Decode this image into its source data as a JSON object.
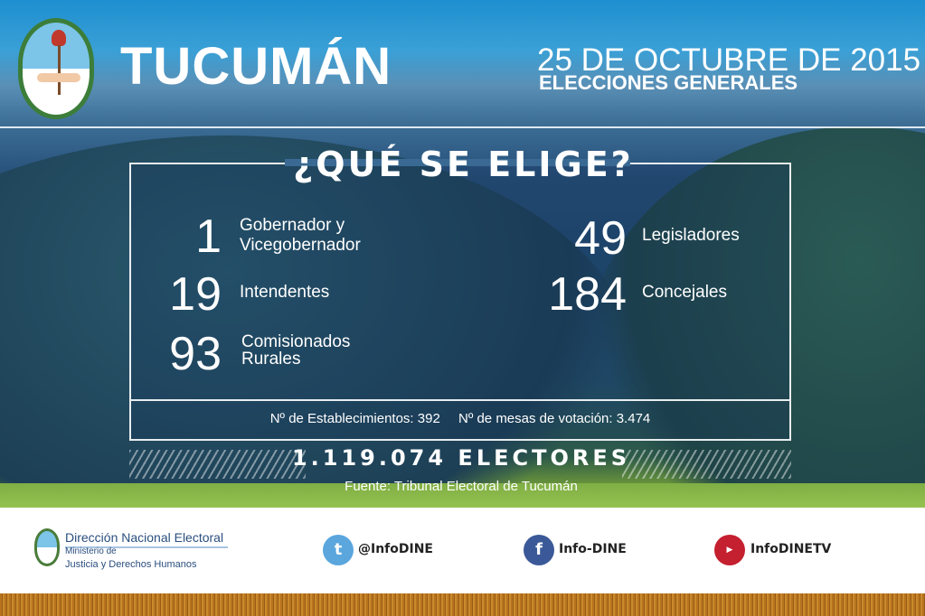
{
  "header": {
    "title": "TUCUMÁN",
    "date": "25 DE OCTUBRE DE 2015",
    "subtitle": "ELECCIONES GENERALES"
  },
  "main": {
    "heading": "¿QUÉ SE ELIGE?",
    "items": [
      {
        "number": "1",
        "label_line1": "Gobernador y",
        "label_line2": "Vicegobernador"
      },
      {
        "number": "19",
        "label_line1": "Intendentes",
        "label_line2": ""
      },
      {
        "number": "93",
        "label_line1": "Comisionados",
        "label_line2": "Rurales"
      },
      {
        "number": "49",
        "label_line1": "Legisladores",
        "label_line2": ""
      },
      {
        "number": "184",
        "label_line1": "Concejales",
        "label_line2": ""
      }
    ],
    "establecimientos": "Nº de Establecimientos: 392",
    "mesas": "Nº de mesas de votación: 3.474",
    "electores": "1.119.074 ELECTORES",
    "fuente": "Fuente: Tribunal Electoral de Tucumán"
  },
  "footer": {
    "org_name": "Dirección Nacional Electoral",
    "ministry_line1": "Ministerio de",
    "ministry_line2": "Justicia y Derechos Humanos",
    "social": [
      {
        "icon": "twitter-icon",
        "handle": "@InfoDINE",
        "color": "#5aa6dd"
      },
      {
        "icon": "facebook-icon",
        "handle": "Info-DINE",
        "color": "#3b5998"
      },
      {
        "icon": "youtube-icon",
        "handle": "InfoDINETV",
        "color": "#c4202f"
      }
    ]
  }
}
